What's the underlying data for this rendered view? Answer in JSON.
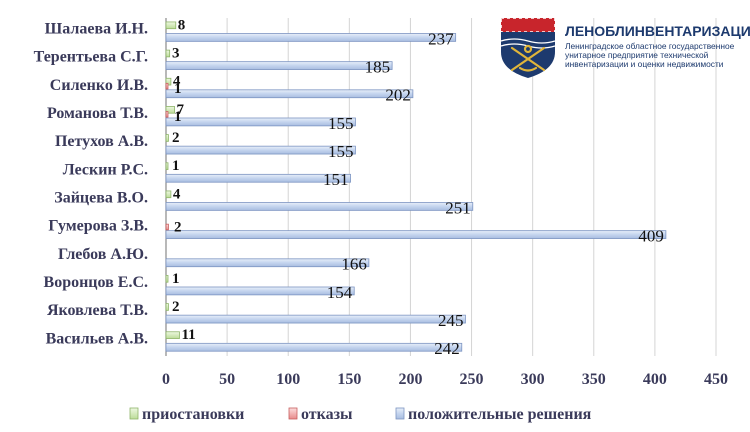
{
  "logo": {
    "icon": "leningrad-oblast-coat-of-arms-icon",
    "title": "ЛЕНОБЛИНВЕНТАРИЗАЦИЯ",
    "subtitle_lines": [
      "Ленинградское областное государственное",
      "унитарное предприятие технической",
      "инвентаризации и оценки недвижимости"
    ],
    "colors": {
      "navy": "#1d3a6e",
      "red": "#c8252c",
      "gold": "#e0b53a"
    }
  },
  "chart_data": {
    "type": "bar",
    "orientation": "horizontal",
    "categories": [
      "Шалаева И.Н.",
      "Терентьева С.Г.",
      "Силенко И.В.",
      "Романова Т.В.",
      "Петухов А.В.",
      "Лескин Р.С.",
      "Зайцева В.О.",
      "Гумерова З.В.",
      "Глебов А.Ю.",
      "Воронцов Е.С.",
      "Яковлева Т.В.",
      "Васильев А.В."
    ],
    "series": [
      {
        "name": "приостановки",
        "color": "#d4ecb8",
        "values": [
          8,
          3,
          4,
          7,
          2,
          1,
          4,
          null,
          null,
          1,
          2,
          11
        ],
        "labels": [
          "8",
          "3",
          "4",
          "7",
          "2",
          "1",
          "4",
          "",
          "",
          "1",
          "2",
          "11"
        ]
      },
      {
        "name": "отказы",
        "color": "#f0a8a8",
        "values": [
          null,
          null,
          1,
          1,
          null,
          null,
          null,
          2,
          null,
          null,
          null,
          null
        ],
        "labels": [
          "",
          "",
          "1",
          "1",
          "",
          "",
          "",
          "2",
          "",
          "",
          "",
          ""
        ]
      },
      {
        "name": "положительные решения",
        "color": "#c4d4ee",
        "values": [
          237,
          185,
          202,
          155,
          155,
          151,
          251,
          409,
          166,
          154,
          245,
          242
        ],
        "labels": [
          "237",
          "185",
          "202",
          "155",
          "155",
          "151",
          "251",
          "409",
          "166",
          "154",
          "245",
          "242"
        ]
      }
    ],
    "xlim": [
      0,
      450
    ],
    "xticks": [
      "0",
      "50",
      "100",
      "150",
      "200",
      "250",
      "300",
      "350",
      "400",
      "450"
    ],
    "tick_values": [
      0,
      50,
      100,
      150,
      200,
      250,
      300,
      350,
      400,
      450
    ],
    "grid": "vertical",
    "legend": "bottom"
  }
}
